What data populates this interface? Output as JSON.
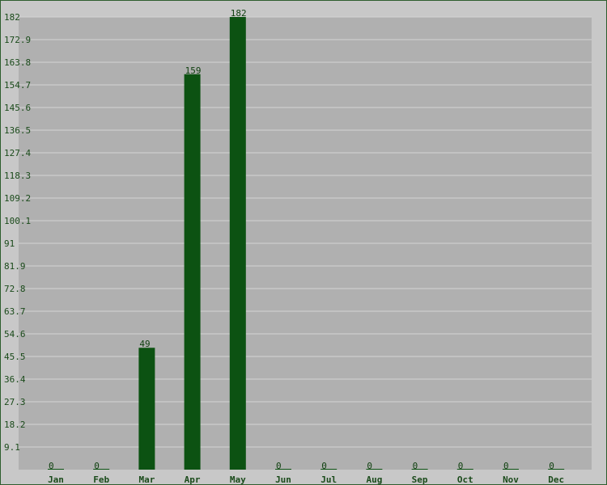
{
  "chart_data": {
    "type": "bar",
    "title": "",
    "xlabel": "",
    "ylabel": "",
    "categories": [
      "Jan",
      "Feb",
      "Mar",
      "Apr",
      "May",
      "Jun",
      "Jul",
      "Aug",
      "Sep",
      "Oct",
      "Nov",
      "Dec"
    ],
    "values": [
      0,
      0,
      49,
      159,
      182,
      0,
      0,
      0,
      0,
      0,
      0,
      0
    ],
    "ylim": [
      0,
      182
    ],
    "yticks": [
      "9.1",
      "18.2",
      "27.3",
      "36.4",
      "45.5",
      "54.6",
      "63.7",
      "72.8",
      "81.9",
      "91",
      "100.1",
      "109.2",
      "118.3",
      "127.4",
      "136.5",
      "145.6",
      "154.7",
      "163.8",
      "172.9",
      "182"
    ],
    "grid": true,
    "legend": "none",
    "colors": {
      "bar": "#0c5212",
      "plot_bg": "#b0b0b0",
      "page_bg": "#c8c8c8",
      "gridline": "#d4d4d4",
      "text": "#1a4a1a",
      "border": "#2e5e2e"
    }
  }
}
